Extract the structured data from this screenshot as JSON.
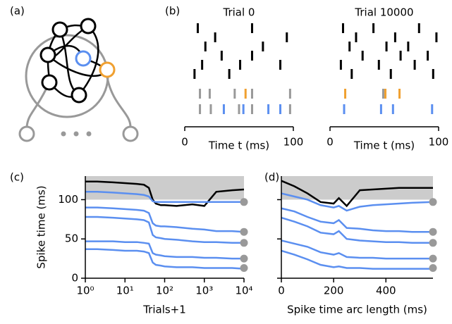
{
  "panel_labels": [
    "(a)",
    "(b)",
    "(c)",
    "(d)"
  ],
  "chart_data": [
    {
      "type": "raster",
      "title": "Trial 0",
      "xlabel": "Time t (ms)",
      "xlim": [
        0,
        100
      ],
      "xticks": [
        0,
        100
      ],
      "series": [
        {
          "color": "#000000",
          "row": 0,
          "values": [
            12,
            62
          ]
        },
        {
          "color": "#000000",
          "row": 1,
          "values": [
            28,
            94
          ]
        },
        {
          "color": "#000000",
          "row": 2,
          "values": [
            19,
            72
          ]
        },
        {
          "color": "#000000",
          "row": 3,
          "values": [
            34,
            62
          ]
        },
        {
          "color": "#000000",
          "row": 4,
          "values": [
            16,
            51,
            88
          ]
        },
        {
          "color": "#000000",
          "row": 5,
          "values": [
            9,
            41
          ]
        },
        {
          "color": "#999999",
          "row": 6,
          "values": [
            14,
            23,
            46,
            62,
            97
          ]
        },
        {
          "color": "#f0a030",
          "row": 6,
          "values": [
            56
          ]
        },
        {
          "color": "#999999",
          "row": 7,
          "values": [
            14,
            24,
            50,
            62,
            97
          ]
        },
        {
          "color": "#5b8ff0",
          "row": 7,
          "values": [
            36,
            54,
            77,
            88
          ]
        }
      ]
    },
    {
      "type": "raster",
      "title": "Trial 10000",
      "xlabel": "Time t (ms)",
      "xlim": [
        0,
        100
      ],
      "xticks": [
        0,
        100
      ],
      "series": [
        {
          "color": "#000000",
          "row": 0,
          "values": [
            12,
            40,
            82
          ]
        },
        {
          "color": "#000000",
          "row": 1,
          "values": [
            24,
            60,
            98
          ]
        },
        {
          "color": "#000000",
          "row": 2,
          "values": [
            18,
            52,
            72
          ]
        },
        {
          "color": "#000000",
          "row": 3,
          "values": [
            30,
            65,
            90
          ]
        },
        {
          "color": "#000000",
          "row": 4,
          "values": [
            10,
            45,
            78
          ]
        },
        {
          "color": "#000000",
          "row": 5,
          "values": [
            20,
            56,
            95
          ]
        },
        {
          "color": "#999999",
          "row": 6,
          "values": [
            49
          ]
        },
        {
          "color": "#f0a030",
          "row": 6,
          "values": [
            14,
            51,
            64
          ]
        },
        {
          "color": "#5b8ff0",
          "row": 7,
          "values": [
            13,
            47,
            58,
            94
          ]
        }
      ]
    },
    {
      "type": "line",
      "xlabel": "Trials+1",
      "ylabel": "Spike time (ms)",
      "log_x": true,
      "xlim": [
        1,
        10000
      ],
      "ylim": [
        0,
        130
      ],
      "band": [
        100,
        130
      ],
      "band_color": "#cccccc",
      "xticks": [
        {
          "value": 1,
          "label": "10⁰"
        },
        {
          "value": 10,
          "label": "10¹"
        },
        {
          "value": 100,
          "label": "10²"
        },
        {
          "value": 1000,
          "label": "10³"
        },
        {
          "value": 10000,
          "label": "10⁴"
        }
      ],
      "yticks": [
        0,
        50,
        100
      ],
      "ytick_labels": true,
      "targets": [
        97,
        59,
        45,
        25,
        13
      ],
      "target_color": "#999999",
      "x": [
        1,
        2,
        5,
        10,
        20,
        30,
        40,
        50,
        60,
        80,
        100,
        200,
        500,
        1000,
        2000,
        5000,
        10000
      ],
      "series": [
        {
          "color": "#000000",
          "values": [
            123,
            123,
            122,
            121,
            120,
            119,
            115,
            100,
            95,
            93,
            93,
            92,
            94,
            92,
            110,
            112,
            113
          ]
        },
        {
          "color": "#5b8ff0",
          "values": [
            110,
            110,
            109,
            108,
            107,
            106,
            104,
            98,
            97,
            97,
            97,
            97,
            97,
            97,
            97,
            97,
            97
          ]
        },
        {
          "color": "#5b8ff0",
          "values": [
            90,
            90,
            89,
            88,
            87,
            86,
            83,
            70,
            67,
            66,
            66,
            65,
            63,
            62,
            60,
            60,
            59
          ]
        },
        {
          "color": "#5b8ff0",
          "values": [
            78,
            78,
            77,
            76,
            75,
            74,
            71,
            55,
            52,
            51,
            50,
            49,
            47,
            46,
            46,
            45,
            45
          ]
        },
        {
          "color": "#5b8ff0",
          "values": [
            47,
            47,
            47,
            46,
            46,
            45,
            44,
            32,
            30,
            29,
            28,
            27,
            27,
            26,
            26,
            25,
            25
          ]
        },
        {
          "color": "#5b8ff0",
          "values": [
            37,
            37,
            36,
            35,
            35,
            34,
            32,
            20,
            17,
            16,
            15,
            14,
            14,
            13,
            13,
            13,
            12
          ]
        }
      ]
    },
    {
      "type": "line",
      "xlabel": "Spike time arc length (ms)",
      "log_x": false,
      "xlim": [
        0,
        580
      ],
      "ylim": [
        0,
        130
      ],
      "band": [
        100,
        130
      ],
      "band_color": "#cccccc",
      "xticks": [
        0,
        200,
        400
      ],
      "yticks": [
        0,
        50,
        100
      ],
      "ytick_labels": false,
      "targets": [
        97,
        59,
        45,
        25,
        13
      ],
      "target_color": "#999999",
      "x": [
        0,
        50,
        100,
        150,
        200,
        220,
        250,
        300,
        350,
        400,
        450,
        500,
        580
      ],
      "series": [
        {
          "color": "#000000",
          "values": [
            124,
            117,
            108,
            97,
            95,
            102,
            92,
            112,
            113,
            114,
            115,
            115,
            115
          ]
        },
        {
          "color": "#5b8ff0",
          "values": [
            108,
            104,
            100,
            93,
            90,
            92,
            86,
            91,
            93,
            94,
            95,
            96,
            97
          ]
        },
        {
          "color": "#5b8ff0",
          "values": [
            89,
            85,
            78,
            72,
            70,
            74,
            64,
            63,
            61,
            60,
            60,
            59,
            59
          ]
        },
        {
          "color": "#5b8ff0",
          "values": [
            77,
            72,
            66,
            58,
            56,
            60,
            50,
            48,
            47,
            46,
            46,
            45,
            45
          ]
        },
        {
          "color": "#5b8ff0",
          "values": [
            48,
            44,
            40,
            33,
            30,
            32,
            27,
            26,
            26,
            25,
            25,
            25,
            25
          ]
        },
        {
          "color": "#5b8ff0",
          "values": [
            35,
            30,
            24,
            17,
            14,
            15,
            13,
            13,
            12,
            12,
            12,
            12,
            12
          ]
        }
      ]
    }
  ]
}
